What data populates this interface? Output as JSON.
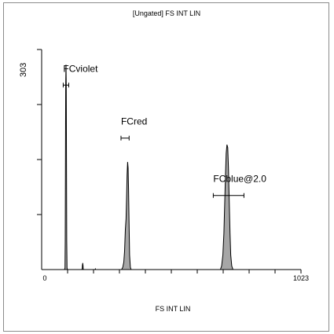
{
  "chart_data": {
    "type": "area",
    "title": "[Ungated] FS INT LIN",
    "xlabel": "FS INT LIN",
    "ylabel": "",
    "xlim": [
      0,
      1023
    ],
    "ylim": [
      0,
      303
    ],
    "x_tick_labels": [
      "0",
      "1023"
    ],
    "y_tick_labels": [
      "303"
    ],
    "fill_color": "#a6a6a6",
    "line_color": "#000000",
    "grid": false,
    "series": [
      {
        "points": [
          [
            0,
            0
          ],
          [
            90,
            0
          ],
          [
            92,
            2
          ],
          [
            93,
            40
          ],
          [
            94,
            150
          ],
          [
            95,
            255
          ],
          [
            96,
            282
          ],
          [
            97,
            255
          ],
          [
            98,
            150
          ],
          [
            99,
            40
          ],
          [
            100,
            2
          ],
          [
            102,
            0
          ],
          [
            158,
            0
          ],
          [
            160,
            1
          ],
          [
            161,
            6
          ],
          [
            162,
            9
          ],
          [
            163,
            6
          ],
          [
            164,
            1
          ],
          [
            166,
            0
          ],
          [
            210,
            0
          ],
          [
            212,
            1
          ],
          [
            213,
            0
          ],
          [
            315,
            0
          ],
          [
            320,
            3
          ],
          [
            324,
            10
          ],
          [
            327,
            25
          ],
          [
            330,
            55
          ],
          [
            333,
            70
          ],
          [
            335,
            100
          ],
          [
            337,
            130
          ],
          [
            339,
            148
          ],
          [
            341,
            140
          ],
          [
            343,
            110
          ],
          [
            345,
            60
          ],
          [
            347,
            20
          ],
          [
            350,
            3
          ],
          [
            353,
            0
          ],
          [
            705,
            0
          ],
          [
            710,
            5
          ],
          [
            715,
            20
          ],
          [
            719,
            50
          ],
          [
            722,
            90
          ],
          [
            725,
            130
          ],
          [
            728,
            160
          ],
          [
            731,
            172
          ],
          [
            734,
            168
          ],
          [
            737,
            140
          ],
          [
            740,
            95
          ],
          [
            743,
            50
          ],
          [
            746,
            20
          ],
          [
            750,
            5
          ],
          [
            755,
            0
          ],
          [
            1023,
            0
          ]
        ]
      }
    ],
    "markers": [
      {
        "label": "FCviolet",
        "x_start": 85,
        "x_end": 107,
        "y": 254
      },
      {
        "label": "FCred",
        "x_start": 313,
        "x_end": 345,
        "y": 181
      },
      {
        "label": "FCblue@2.0",
        "x_start": 677,
        "x_end": 798,
        "y": 102
      }
    ]
  }
}
